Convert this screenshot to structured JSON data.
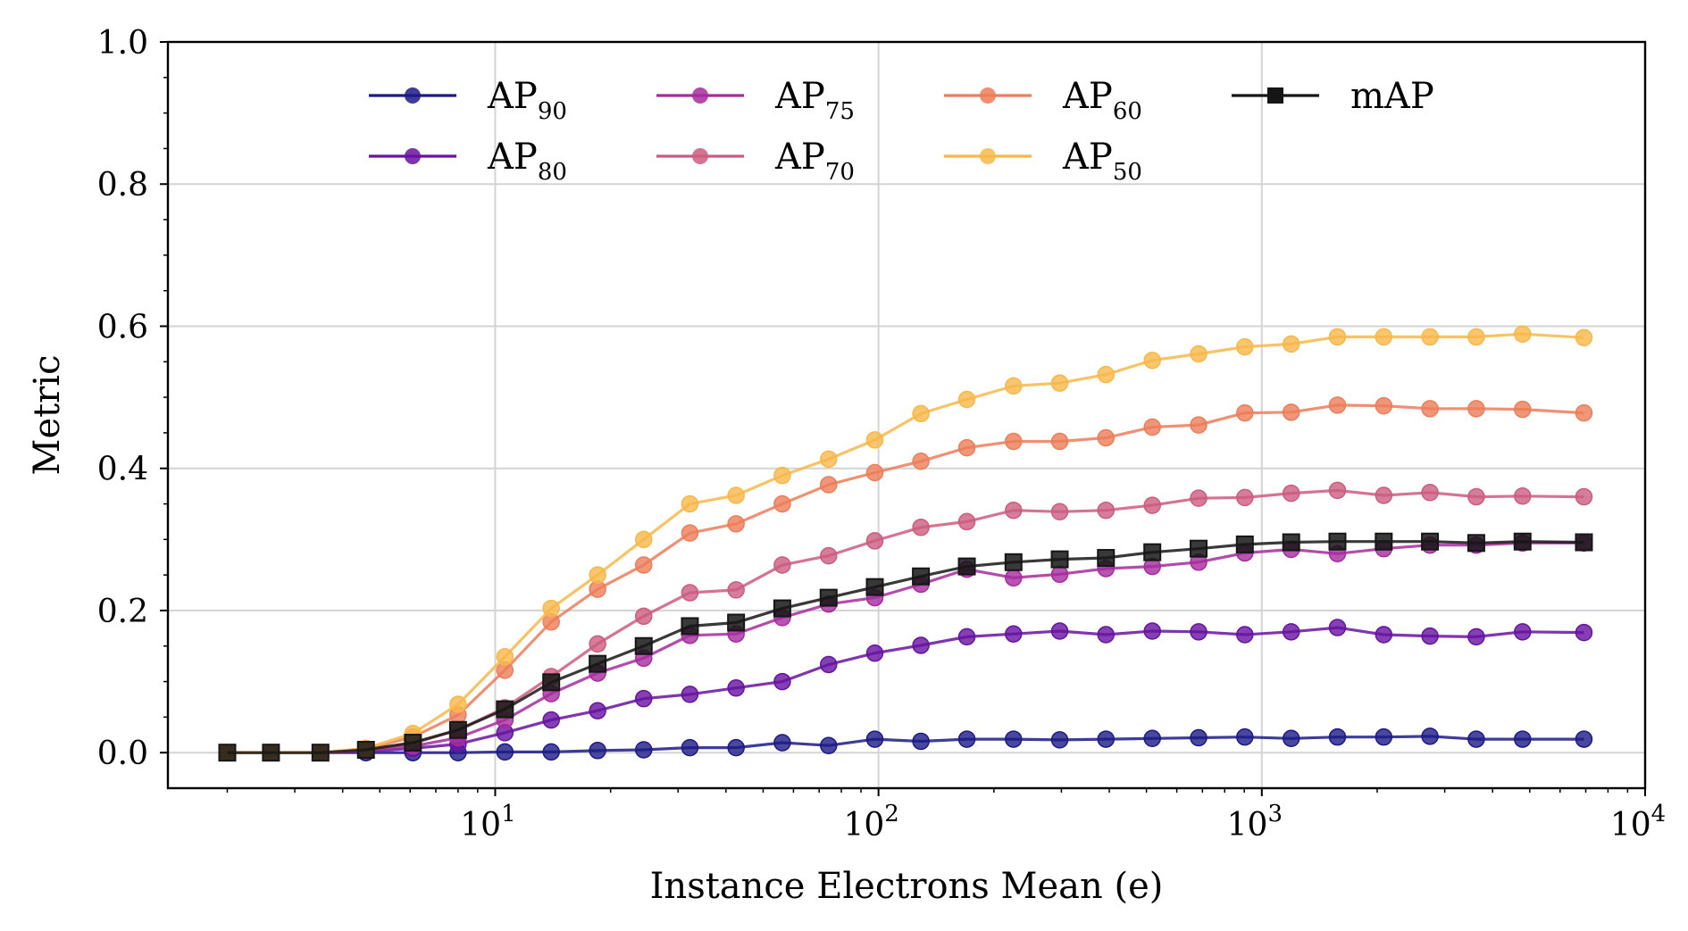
{
  "chart_data": {
    "type": "line",
    "xlabel": "Instance Electrons Mean (e)",
    "ylabel": "Metric",
    "xscale": "log",
    "xlim": [
      1.4,
      10000
    ],
    "ylim": [
      -0.05,
      1.0
    ],
    "grid": true,
    "legend_position": "top-left",
    "y_ticks": [
      "0.0",
      "0.2",
      "0.4",
      "0.6",
      "0.8",
      "1.0"
    ],
    "x_ticks": [
      {
        "base": "10",
        "exp": "1"
      },
      {
        "base": "10",
        "exp": "2"
      },
      {
        "base": "10",
        "exp": "3"
      },
      {
        "base": "10",
        "exp": "4"
      }
    ],
    "x": [
      2.0,
      2.6,
      3.5,
      4.6,
      6.1,
      8.0,
      10.6,
      14.0,
      18.5,
      24.4,
      32.2,
      42.5,
      56.1,
      74.1,
      97.8,
      129,
      170,
      225,
      297,
      392,
      518,
      684,
      903,
      1193,
      1575,
      2080,
      2746,
      3626,
      4789,
      6923
    ],
    "series": [
      {
        "name": "AP90",
        "label_base": "AP",
        "label_sub": "90",
        "color": "#1c1a86",
        "marker": "circle",
        "values": [
          0.0,
          0.0,
          0.0,
          0.0,
          0.0,
          0.0,
          0.001,
          0.001,
          0.003,
          0.004,
          0.007,
          0.007,
          0.014,
          0.01,
          0.019,
          0.016,
          0.019,
          0.019,
          0.018,
          0.019,
          0.02,
          0.021,
          0.022,
          0.02,
          0.022,
          0.022,
          0.023,
          0.019,
          0.019,
          0.019
        ]
      },
      {
        "name": "AP80",
        "label_base": "AP",
        "label_sub": "80",
        "color": "#6712a0",
        "marker": "circle",
        "values": [
          0.0,
          0.0,
          0.0,
          0.002,
          0.006,
          0.012,
          0.028,
          0.046,
          0.059,
          0.076,
          0.082,
          0.091,
          0.1,
          0.124,
          0.14,
          0.151,
          0.163,
          0.167,
          0.171,
          0.166,
          0.171,
          0.17,
          0.166,
          0.17,
          0.176,
          0.166,
          0.164,
          0.163,
          0.17,
          0.169
        ]
      },
      {
        "name": "AP75",
        "label_base": "AP",
        "label_sub": "75",
        "color": "#a62b9e",
        "marker": "circle",
        "values": [
          0.0,
          0.0,
          0.0,
          0.003,
          0.009,
          0.021,
          0.046,
          0.083,
          0.112,
          0.133,
          0.165,
          0.167,
          0.19,
          0.209,
          0.218,
          0.237,
          0.258,
          0.246,
          0.251,
          0.259,
          0.262,
          0.268,
          0.281,
          0.286,
          0.28,
          0.287,
          0.292,
          0.292,
          0.295,
          0.295
        ]
      },
      {
        "name": "AP70",
        "label_base": "AP",
        "label_sub": "70",
        "color": "#cc5c7f",
        "marker": "circle",
        "values": [
          0.0,
          0.0,
          0.0,
          0.004,
          0.013,
          0.032,
          0.063,
          0.107,
          0.153,
          0.192,
          0.225,
          0.229,
          0.264,
          0.277,
          0.298,
          0.317,
          0.325,
          0.341,
          0.339,
          0.341,
          0.348,
          0.358,
          0.359,
          0.365,
          0.369,
          0.362,
          0.366,
          0.36,
          0.361,
          0.36
        ]
      },
      {
        "name": "AP60",
        "label_base": "AP",
        "label_sub": "60",
        "color": "#ec7d59",
        "marker": "circle",
        "values": [
          0.0,
          0.0,
          0.0,
          0.005,
          0.022,
          0.053,
          0.116,
          0.184,
          0.23,
          0.264,
          0.309,
          0.322,
          0.35,
          0.377,
          0.394,
          0.41,
          0.429,
          0.438,
          0.438,
          0.443,
          0.458,
          0.461,
          0.478,
          0.479,
          0.489,
          0.488,
          0.484,
          0.484,
          0.483,
          0.478
        ]
      },
      {
        "name": "AP50",
        "label_base": "AP",
        "label_sub": "50",
        "color": "#f7b84a",
        "marker": "circle",
        "values": [
          0.0,
          0.0,
          0.0,
          0.006,
          0.027,
          0.068,
          0.135,
          0.203,
          0.25,
          0.3,
          0.35,
          0.362,
          0.39,
          0.413,
          0.44,
          0.477,
          0.497,
          0.516,
          0.52,
          0.532,
          0.552,
          0.561,
          0.571,
          0.575,
          0.585,
          0.585,
          0.585,
          0.585,
          0.589,
          0.584
        ]
      },
      {
        "name": "mAP",
        "label_base": "mAP",
        "label_sub": "",
        "color": "#161616",
        "marker": "square",
        "values": [
          0.0,
          0.0,
          0.0,
          0.004,
          0.014,
          0.032,
          0.061,
          0.099,
          0.125,
          0.15,
          0.178,
          0.183,
          0.203,
          0.218,
          0.233,
          0.248,
          0.262,
          0.268,
          0.272,
          0.274,
          0.282,
          0.287,
          0.293,
          0.296,
          0.297,
          0.297,
          0.297,
          0.295,
          0.297,
          0.296
        ]
      }
    ]
  }
}
